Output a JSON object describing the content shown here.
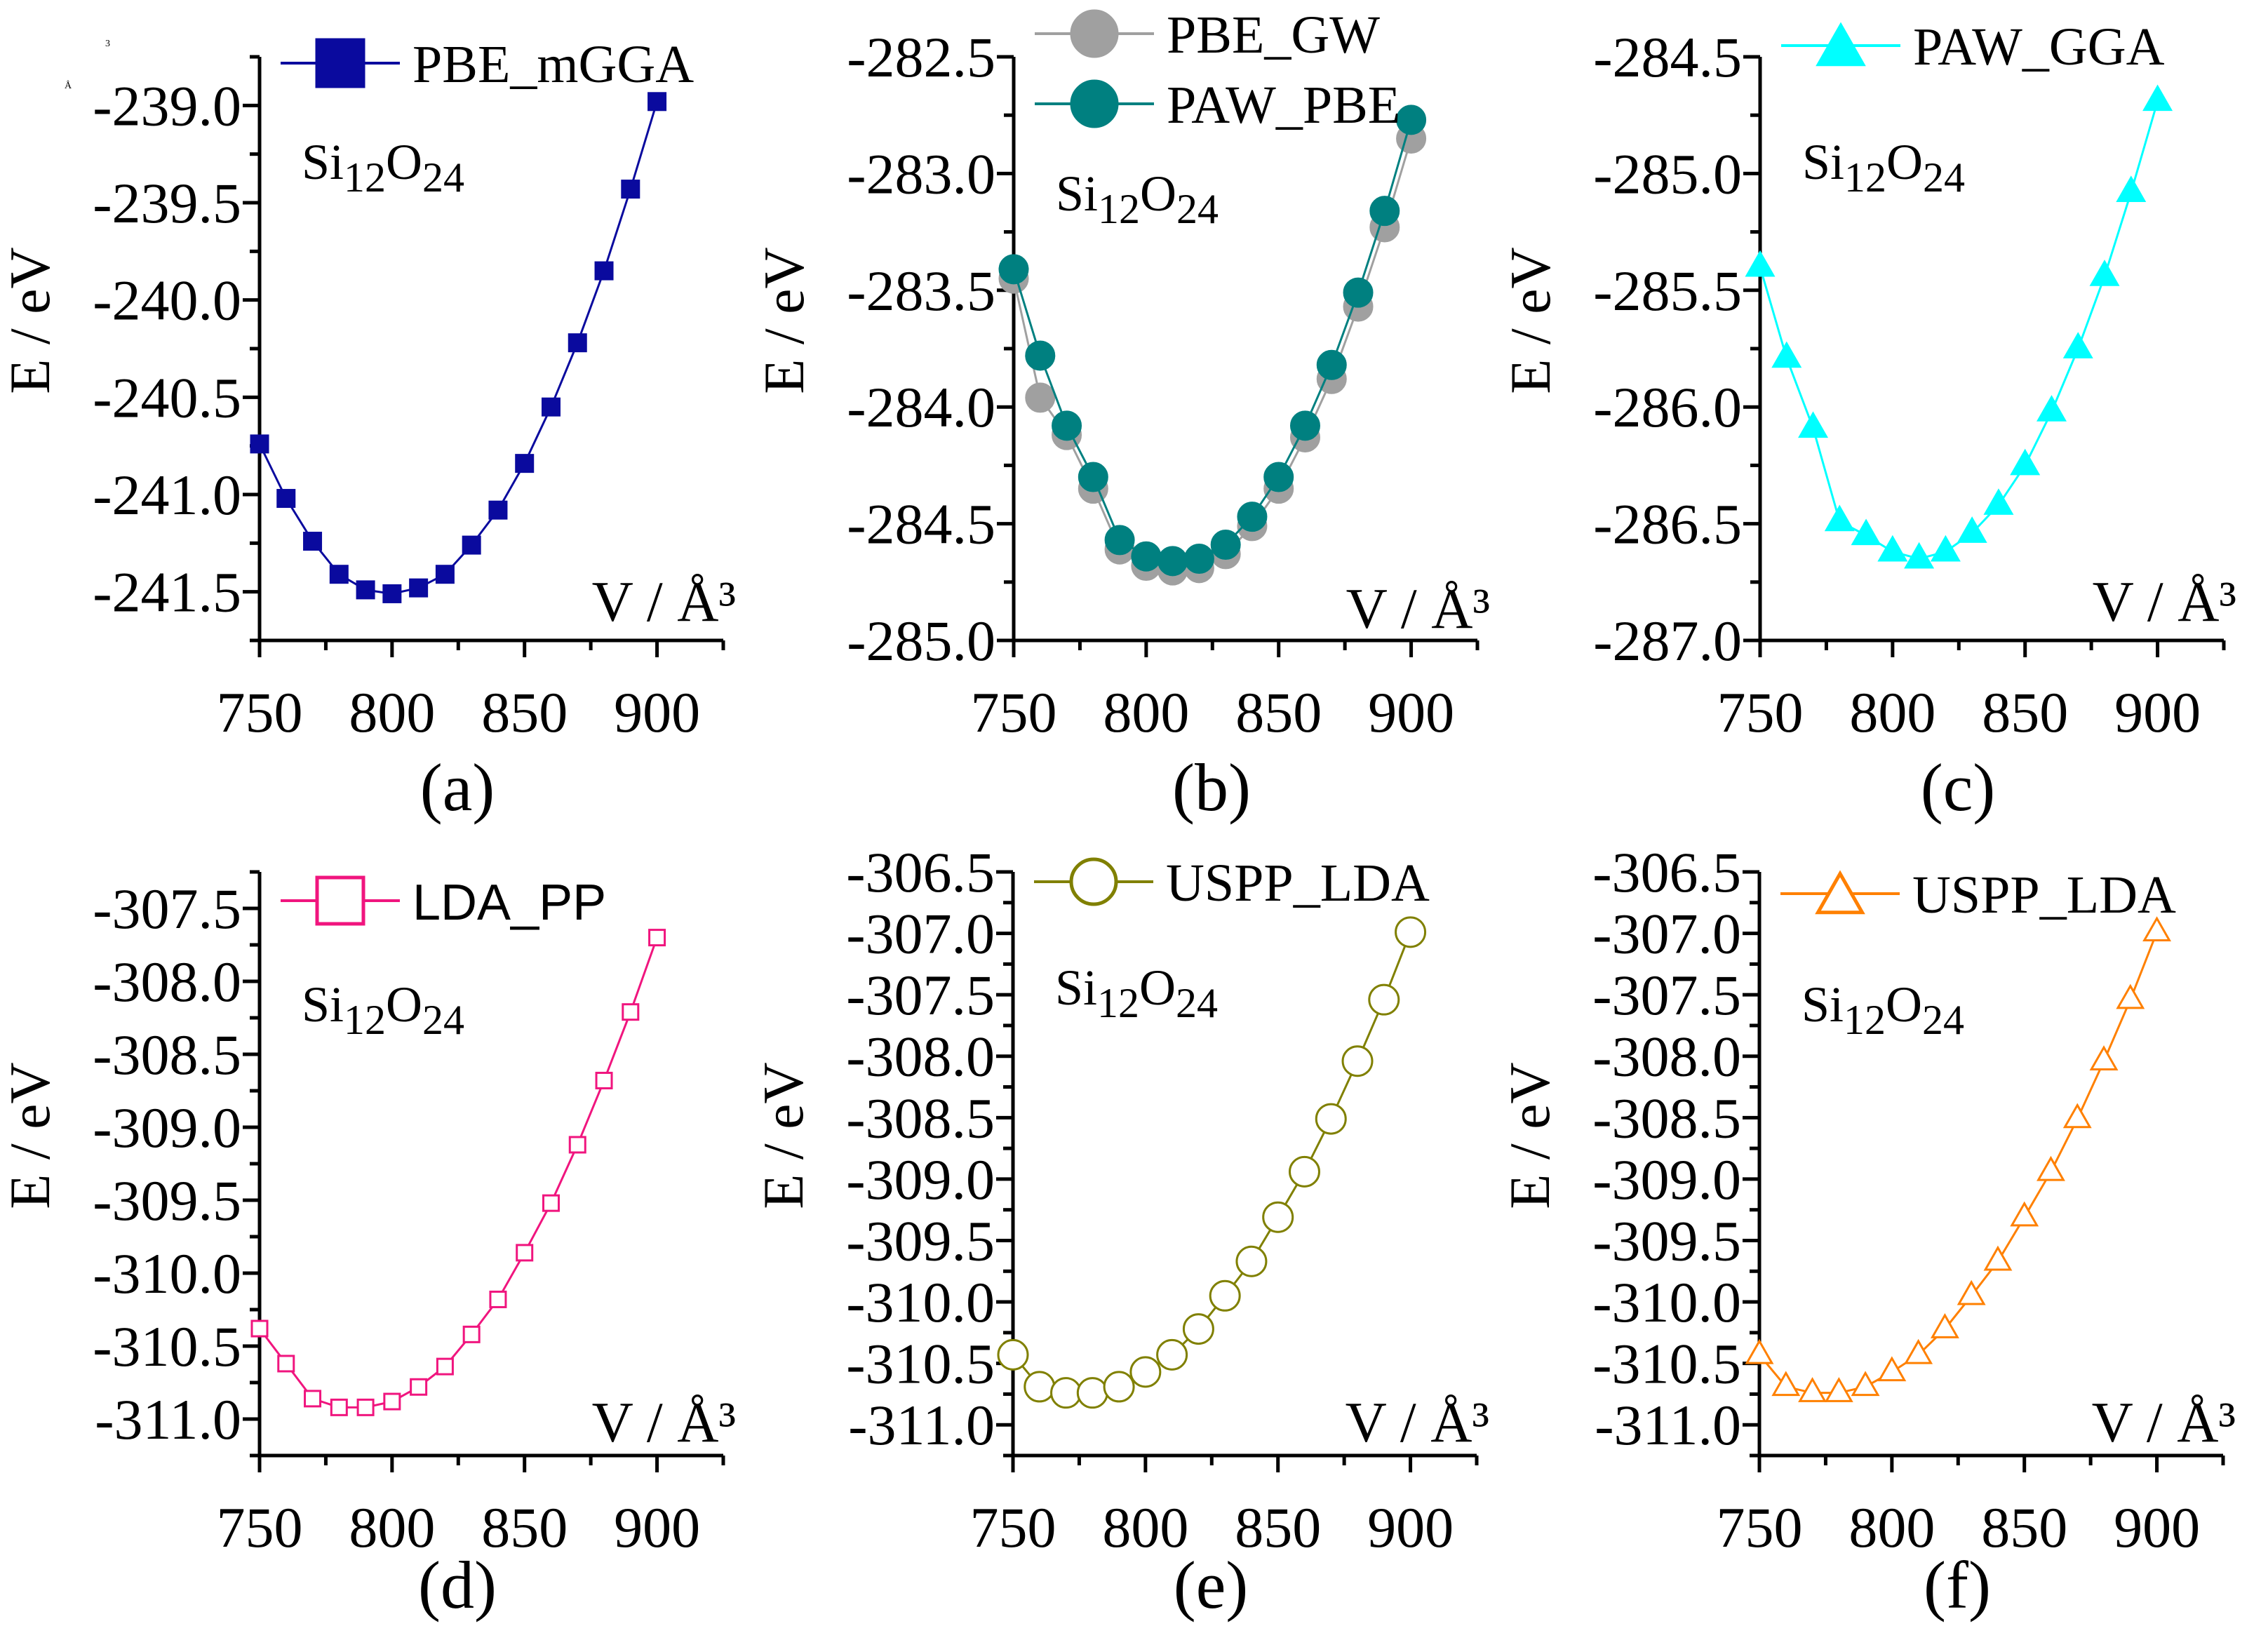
{
  "figure": {
    "artifact_text": [
      "Å",
      "3"
    ]
  },
  "chart_data": [
    {
      "panel": "(a)",
      "type": "line",
      "xlabel": "V / Å³",
      "ylabel": "E / eV",
      "annotation": "Si12O24",
      "xlim": [
        750,
        925
      ],
      "ylim": [
        -241.75,
        -238.75
      ],
      "xticks": [
        "750",
        "800",
        "850",
        "900"
      ],
      "yticks": [
        "-241.5",
        "-241.0",
        "-240.5",
        "-240.0",
        "-239.5",
        "-239.0"
      ],
      "x": [
        750,
        760,
        770,
        780,
        790,
        800,
        810,
        820,
        830,
        840,
        850,
        860,
        870,
        880,
        890,
        900
      ],
      "series": [
        {
          "name": "PBE_mGGA",
          "marker": "square-filled",
          "color": "#0a0a9e",
          "values": [
            -240.74,
            -241.02,
            -241.24,
            -241.41,
            -241.49,
            -241.51,
            -241.48,
            -241.41,
            -241.26,
            -241.08,
            -240.84,
            -240.55,
            -240.22,
            -239.85,
            -239.43,
            -238.98
          ]
        }
      ]
    },
    {
      "panel": "(b)",
      "type": "line",
      "xlabel": "V / Å³",
      "ylabel": "E / eV",
      "annotation": "Si12O24",
      "xlim": [
        750,
        925
      ],
      "ylim": [
        -285.0,
        -282.5
      ],
      "xticks": [
        "750",
        "800",
        "850",
        "900"
      ],
      "yticks": [
        "-285.0",
        "-284.5",
        "-284.0",
        "-283.5",
        "-283.0",
        "-282.5"
      ],
      "x": [
        750,
        760,
        770,
        780,
        790,
        800,
        810,
        820,
        830,
        840,
        850,
        860,
        870,
        880,
        890,
        900
      ],
      "series": [
        {
          "name": "PBE_GW",
          "marker": "circle-filled",
          "color": "#a0a0a0",
          "values": [
            -283.45,
            -283.96,
            -284.12,
            -284.35,
            -284.61,
            -284.68,
            -284.7,
            -284.69,
            -284.63,
            -284.51,
            -284.35,
            -284.13,
            -283.88,
            -283.57,
            -283.23,
            -282.85
          ]
        },
        {
          "name": "PAW_PBE",
          "marker": "circle-filled",
          "color": "#008080",
          "values": [
            -283.41,
            -283.78,
            -284.08,
            -284.3,
            -284.57,
            -284.64,
            -284.66,
            -284.65,
            -284.59,
            -284.47,
            -284.3,
            -284.08,
            -283.82,
            -283.51,
            -283.16,
            -282.77
          ]
        }
      ]
    },
    {
      "panel": "(c)",
      "type": "line",
      "xlabel": "V / Å³",
      "ylabel": "E / eV",
      "annotation": "Si12O24",
      "xlim": [
        750,
        925
      ],
      "ylim": [
        -287.0,
        -284.5
      ],
      "xticks": [
        "750",
        "800",
        "850",
        "900"
      ],
      "yticks": [
        "-287.0",
        "-286.5",
        "-286.0",
        "-285.5",
        "-285.0",
        "-284.5"
      ],
      "x": [
        750,
        760,
        770,
        780,
        790,
        800,
        810,
        820,
        830,
        840,
        850,
        860,
        870,
        880,
        890,
        900
      ],
      "series": [
        {
          "name": "PAW_GGA",
          "marker": "triangle-filled",
          "color": "#00ffff",
          "values": [
            -285.4,
            -285.79,
            -286.09,
            -286.49,
            -286.55,
            -286.62,
            -286.65,
            -286.62,
            -286.54,
            -286.42,
            -286.25,
            -286.02,
            -285.75,
            -285.44,
            -285.08,
            -284.69
          ]
        }
      ]
    },
    {
      "panel": "(d)",
      "type": "line",
      "xlabel": "V / Å³",
      "ylabel": "E / eV",
      "annotation": "Si12O24",
      "xlim": [
        750,
        925
      ],
      "ylim": [
        -311.25,
        -307.25
      ],
      "xticks": [
        "750",
        "800",
        "850",
        "900"
      ],
      "yticks": [
        "-311.0",
        "-310.5",
        "-310.0",
        "-309.5",
        "-309.0",
        "-308.5",
        "-308.0",
        "-307.5"
      ],
      "x": [
        750,
        760,
        770,
        780,
        790,
        800,
        810,
        820,
        830,
        840,
        850,
        860,
        870,
        880,
        890,
        900
      ],
      "series": [
        {
          "name": "LDA_PP",
          "marker": "square-open",
          "color": "#f0157e",
          "values": [
            -310.38,
            -310.62,
            -310.86,
            -310.92,
            -310.92,
            -310.88,
            -310.78,
            -310.64,
            -310.42,
            -310.18,
            -309.86,
            -309.52,
            -309.12,
            -308.68,
            -308.21,
            -307.7
          ]
        }
      ]
    },
    {
      "panel": "(e)",
      "type": "line",
      "xlabel": "V / Å³",
      "ylabel": "E / eV",
      "annotation": "Si12O24",
      "xlim": [
        750,
        925
      ],
      "ylim": [
        -311.25,
        -306.5
      ],
      "xticks": [
        "750",
        "800",
        "850",
        "900"
      ],
      "yticks": [
        "-311.0",
        "-310.5",
        "-310.0",
        "-309.5",
        "-309.0",
        "-308.5",
        "-308.0",
        "-307.5",
        "-307.0",
        "-306.5"
      ],
      "x": [
        750,
        760,
        770,
        780,
        790,
        800,
        810,
        820,
        830,
        840,
        850,
        860,
        870,
        880,
        890,
        900
      ],
      "series": [
        {
          "name": "USPP_LDA",
          "marker": "circle-open",
          "color": "#808000",
          "values": [
            -310.43,
            -310.69,
            -310.74,
            -310.74,
            -310.69,
            -310.57,
            -310.43,
            -310.22,
            -309.95,
            -309.67,
            -309.31,
            -308.94,
            -308.51,
            -308.04,
            -307.54,
            -306.99
          ]
        }
      ]
    },
    {
      "panel": "(f)",
      "type": "line",
      "xlabel": "V / Å³",
      "ylabel": "E / eV",
      "annotation": "Si12O24",
      "xlim": [
        750,
        925
      ],
      "ylim": [
        -311.25,
        -306.5
      ],
      "xticks": [
        "750",
        "800",
        "850",
        "900"
      ],
      "yticks": [
        "-311.0",
        "-310.5",
        "-310.0",
        "-309.5",
        "-309.0",
        "-308.5",
        "-308.0",
        "-307.5",
        "-307.0",
        "-306.5"
      ],
      "x": [
        750,
        760,
        770,
        780,
        790,
        800,
        810,
        820,
        830,
        840,
        850,
        860,
        870,
        880,
        890,
        900
      ],
      "series": [
        {
          "name": "USPP_LDA",
          "marker": "triangle-open",
          "color": "#ff8000",
          "values": [
            -310.43,
            -310.69,
            -310.74,
            -310.74,
            -310.69,
            -310.57,
            -310.43,
            -310.22,
            -309.95,
            -309.67,
            -309.31,
            -308.94,
            -308.51,
            -308.04,
            -307.54,
            -306.99
          ]
        }
      ]
    }
  ]
}
